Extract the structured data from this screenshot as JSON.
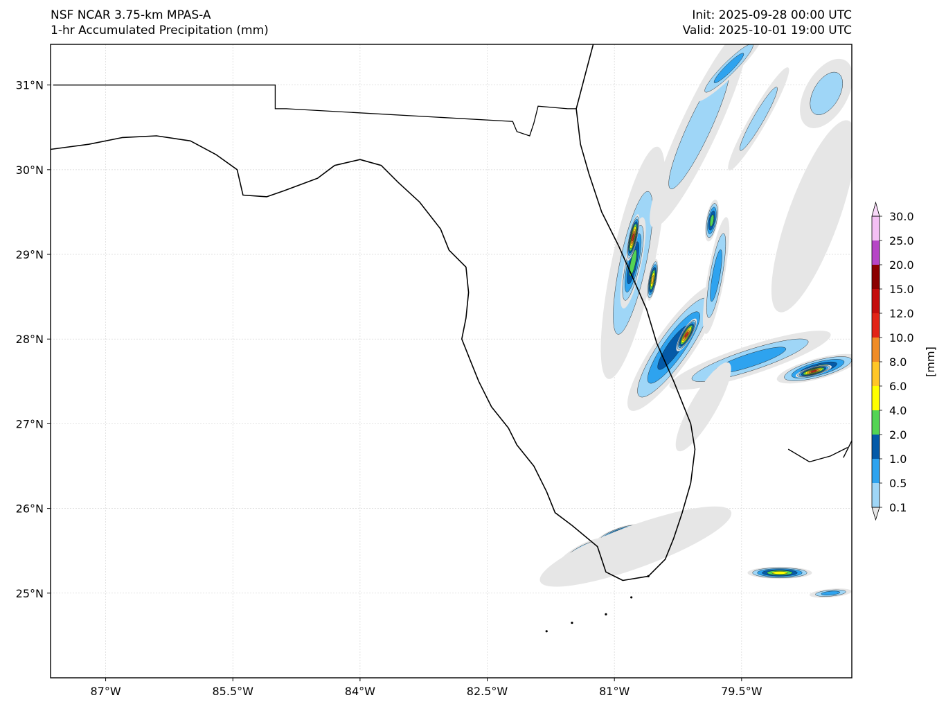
{
  "header": {
    "model": "NSF NCAR 3.75-km MPAS-A",
    "field": "1-hr Accumulated Precipitation (mm)",
    "init": "Init: 2025-09-28 00:00 UTC",
    "valid": "Valid: 2025-10-01 19:00 UTC"
  },
  "map": {
    "lon_range": [
      -87.65,
      -78.2
    ],
    "lat_range": [
      24.0,
      31.48
    ],
    "lon_ticks": [
      {
        "value": -87.0,
        "label": "87°W"
      },
      {
        "value": -85.5,
        "label": "85.5°W"
      },
      {
        "value": -84.0,
        "label": "84°W"
      },
      {
        "value": -82.5,
        "label": "82.5°W"
      },
      {
        "value": -81.0,
        "label": "81°W"
      },
      {
        "value": -79.5,
        "label": "79.5°W"
      }
    ],
    "lat_ticks": [
      {
        "value": 31,
        "label": "31°N"
      },
      {
        "value": 30,
        "label": "30°N"
      },
      {
        "value": 29,
        "label": "29°N"
      },
      {
        "value": 28,
        "label": "28°N"
      },
      {
        "value": 27,
        "label": "27°N"
      },
      {
        "value": 26,
        "label": "26°N"
      },
      {
        "value": 25,
        "label": "25°N"
      }
    ],
    "gridlines": true,
    "coastline": [
      [
        -87.65,
        30.24
      ],
      [
        -87.2,
        30.3
      ],
      [
        -86.8,
        30.38
      ],
      [
        -86.4,
        30.4
      ],
      [
        -86.0,
        30.34
      ],
      [
        -85.7,
        30.18
      ],
      [
        -85.45,
        30.0
      ],
      [
        -85.38,
        29.7
      ],
      [
        -85.1,
        29.68
      ],
      [
        -84.9,
        29.75
      ],
      [
        -84.5,
        29.9
      ],
      [
        -84.3,
        30.05
      ],
      [
        -84.0,
        30.12
      ],
      [
        -83.75,
        30.05
      ],
      [
        -83.55,
        29.85
      ],
      [
        -83.3,
        29.62
      ],
      [
        -83.05,
        29.3
      ],
      [
        -82.95,
        29.05
      ],
      [
        -82.75,
        28.85
      ],
      [
        -82.72,
        28.55
      ],
      [
        -82.75,
        28.25
      ],
      [
        -82.8,
        28.0
      ],
      [
        -82.7,
        27.75
      ],
      [
        -82.6,
        27.5
      ],
      [
        -82.45,
        27.2
      ],
      [
        -82.25,
        26.95
      ],
      [
        -82.15,
        26.75
      ],
      [
        -81.95,
        26.5
      ],
      [
        -81.8,
        26.2
      ],
      [
        -81.7,
        25.95
      ],
      [
        -81.5,
        25.8
      ],
      [
        -81.2,
        25.55
      ],
      [
        -81.1,
        25.25
      ],
      [
        -80.9,
        25.15
      ],
      [
        -80.6,
        25.2
      ],
      [
        -80.4,
        25.4
      ],
      [
        -80.3,
        25.65
      ],
      [
        -80.2,
        25.95
      ],
      [
        -80.1,
        26.3
      ],
      [
        -80.05,
        26.7
      ],
      [
        -80.1,
        27.0
      ],
      [
        -80.3,
        27.5
      ],
      [
        -80.5,
        27.95
      ],
      [
        -80.62,
        28.35
      ],
      [
        -80.75,
        28.65
      ],
      [
        -80.95,
        29.1
      ],
      [
        -81.15,
        29.5
      ],
      [
        -81.3,
        29.95
      ],
      [
        -81.4,
        30.3
      ],
      [
        -81.45,
        30.72
      ],
      [
        -81.35,
        31.1
      ],
      [
        -81.25,
        31.48
      ]
    ],
    "state_border": [
      [
        -87.62,
        31.0
      ],
      [
        -85.0,
        31.0
      ],
      [
        -85.0,
        30.72
      ],
      [
        -84.87,
        30.72
      ],
      [
        -82.2,
        30.57
      ],
      [
        -82.15,
        30.45
      ],
      [
        -82.0,
        30.4
      ],
      [
        -81.95,
        30.55
      ],
      [
        -81.9,
        30.75
      ],
      [
        -81.55,
        30.72
      ],
      [
        -81.45,
        30.72
      ]
    ],
    "bahamas": [
      [
        [
          -78.95,
          26.7
        ],
        [
          -78.7,
          26.55
        ],
        [
          -78.45,
          26.62
        ],
        [
          -78.25,
          26.72
        ]
      ],
      [
        [
          -78.3,
          26.6
        ],
        [
          -78.2,
          26.8
        ]
      ]
    ],
    "keys": [
      [
        -80.6,
        25.2
      ],
      [
        -80.8,
        24.95
      ],
      [
        -81.1,
        24.75
      ],
      [
        -81.5,
        24.65
      ],
      [
        -81.8,
        24.55
      ]
    ],
    "precip": [
      {
        "lon": -80.78,
        "lat": 28.9,
        "rx": 1.4,
        "ry": 0.25,
        "rot": -78,
        "level": 1
      },
      {
        "lon": -80.78,
        "lat": 28.9,
        "rx": 0.55,
        "ry": 0.1,
        "rot": -78,
        "level": 4
      },
      {
        "lon": -80.78,
        "lat": 29.2,
        "rx": 0.28,
        "ry": 0.05,
        "rot": -78,
        "level": 8
      },
      {
        "lon": -80.55,
        "lat": 28.7,
        "rx": 0.25,
        "ry": 0.05,
        "rot": -80,
        "level": 6
      },
      {
        "lon": -80.3,
        "lat": 27.9,
        "rx": 0.9,
        "ry": 0.22,
        "rot": -55,
        "level": 3
      },
      {
        "lon": -80.15,
        "lat": 28.05,
        "rx": 0.22,
        "ry": 0.06,
        "rot": -60,
        "level": 8
      },
      {
        "lon": -79.4,
        "lat": 27.75,
        "rx": 1.0,
        "ry": 0.17,
        "rot": -18,
        "level": 2
      },
      {
        "lon": -78.6,
        "lat": 27.65,
        "rx": 0.5,
        "ry": 0.12,
        "rot": -15,
        "level": 4
      },
      {
        "lon": -78.65,
        "lat": 27.62,
        "rx": 0.22,
        "ry": 0.05,
        "rot": -15,
        "level": 8
      },
      {
        "lon": -79.8,
        "lat": 28.75,
        "rx": 0.7,
        "ry": 0.1,
        "rot": -80,
        "level": 2
      },
      {
        "lon": -79.85,
        "lat": 29.4,
        "rx": 0.25,
        "ry": 0.07,
        "rot": -80,
        "level": 4
      },
      {
        "lon": -80.0,
        "lat": 30.5,
        "rx": 1.3,
        "ry": 0.22,
        "rot": -65,
        "level": 1
      },
      {
        "lon": -79.65,
        "lat": 31.2,
        "rx": 0.55,
        "ry": 0.1,
        "rot": -45,
        "level": 2
      },
      {
        "lon": -79.3,
        "lat": 30.6,
        "rx": 0.7,
        "ry": 0.1,
        "rot": -60,
        "level": 1
      },
      {
        "lon": -78.5,
        "lat": 30.9,
        "rx": 0.45,
        "ry": 0.25,
        "rot": -60,
        "level": 1
      },
      {
        "lon": -78.65,
        "lat": 29.45,
        "rx": 1.2,
        "ry": 0.3,
        "rot": -70,
        "level": 0
      },
      {
        "lon": -79.05,
        "lat": 25.24,
        "rx": 0.38,
        "ry": 0.07,
        "rot": 0,
        "level": 5
      },
      {
        "lon": -80.95,
        "lat": 25.7,
        "rx": 0.28,
        "ry": 0.07,
        "rot": -20,
        "level": 6
      },
      {
        "lon": -80.55,
        "lat": 25.68,
        "rx": 0.28,
        "ry": 0.07,
        "rot": -20,
        "level": 4
      },
      {
        "lon": -81.4,
        "lat": 25.48,
        "rx": 0.3,
        "ry": 0.08,
        "rot": -30,
        "level": 3
      },
      {
        "lon": -80.75,
        "lat": 25.55,
        "rx": 1.2,
        "ry": 0.25,
        "rot": -20,
        "level": 0
      },
      {
        "lon": -79.95,
        "lat": 27.2,
        "rx": 0.6,
        "ry": 0.15,
        "rot": -60,
        "level": 0
      },
      {
        "lon": -78.45,
        "lat": 25.0,
        "rx": 0.25,
        "ry": 0.05,
        "rot": -5,
        "level": 2
      }
    ]
  },
  "colorbar": {
    "label": "[mm]",
    "levels": [
      "0.1",
      "0.5",
      "1.0",
      "2.0",
      "4.0",
      "6.0",
      "8.0",
      "10.0",
      "12.0",
      "15.0",
      "20.0",
      "25.0",
      "30.0"
    ],
    "colors": [
      "#e6e6e6",
      "#9fd6f7",
      "#2ea3ef",
      "#045aa8",
      "#54d454",
      "#ffff00",
      "#ffc627",
      "#f08c26",
      "#e22417",
      "#c40d0d",
      "#8b0000",
      "#b646c6",
      "#f4c0f4"
    ]
  }
}
